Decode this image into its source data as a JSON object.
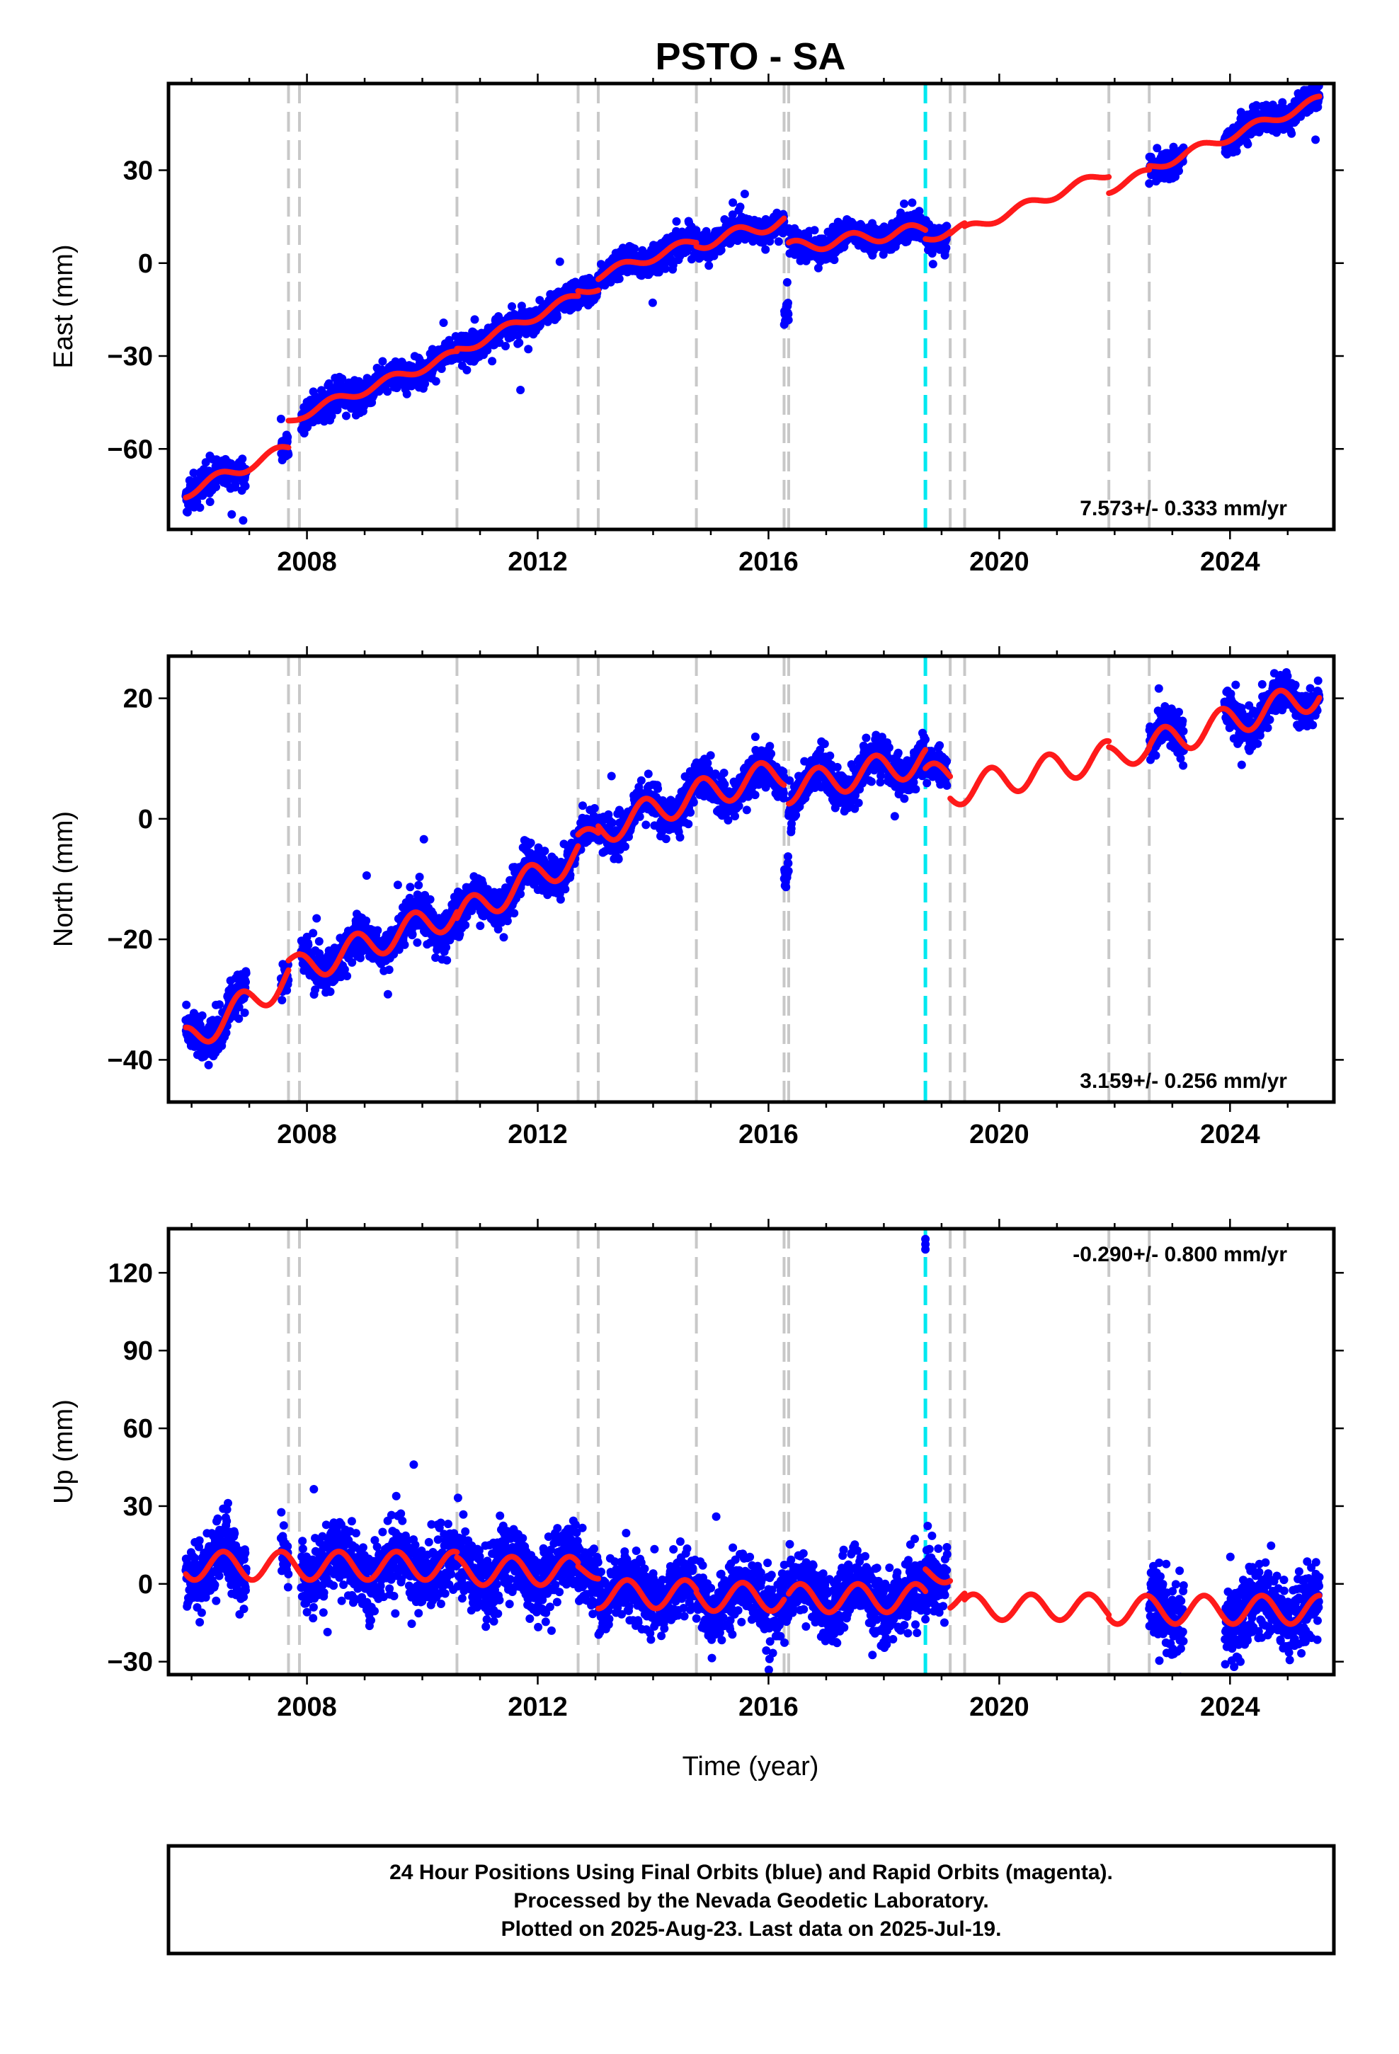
{
  "title": "PSTO - SA",
  "x_axis_label": "Time (year)",
  "x_tick_labels": [
    "2008",
    "2012",
    "2016",
    "2020",
    "2024"
  ],
  "footer": {
    "line1": "24 Hour Positions Using Final Orbits (blue) and Rapid Orbits (magenta).",
    "line2": "Processed by the Nevada Geodetic Laboratory.",
    "line3": "Plotted on 2025-Aug-23. Last data on 2025-Jul-19."
  },
  "colors": {
    "final_orbits": "#0000ff",
    "model": "#ff1a1a",
    "equipment_change": "#c8c8c8",
    "earthquake": "#00e8f0"
  },
  "chart_data": [
    {
      "type": "scatter",
      "panel": "east",
      "ylabel": "East (mm)",
      "xlim": [
        2005.6,
        2025.8
      ],
      "ylim": [
        -86,
        58
      ],
      "yticks": [
        -60,
        -30,
        0,
        30
      ],
      "ytick_labels": [
        "−60",
        "−30",
        "0",
        "30"
      ],
      "rate_label": "7.573+/- 0.333 mm/yr",
      "rate_position": "bottom-right",
      "gray_step_years": [
        2007.68,
        2007.87,
        2010.6,
        2012.7,
        2013.05,
        2014.75,
        2016.27,
        2016.35,
        2019.15,
        2019.4,
        2021.9,
        2022.6
      ],
      "earthquake_year": 2018.72,
      "data_ranges": [
        [
          2005.9,
          2006.6
        ],
        [
          2006.6,
          2006.95
        ],
        [
          2007.55,
          2007.68
        ],
        [
          2007.9,
          2018.72
        ],
        [
          2018.72,
          2019.1
        ],
        [
          2022.6,
          2023.2
        ],
        [
          2023.9,
          2025.55
        ]
      ],
      "model_segments": [
        {
          "x": [
            2005.9,
            2007.68
          ],
          "y0": -74,
          "rate": 8.0,
          "amp": 1.8,
          "phase": 0.2
        },
        {
          "x": [
            2007.68,
            2007.87
          ],
          "y0": -51,
          "rate": 7.0,
          "amp": 1.0,
          "phase": 0.2
        },
        {
          "x": [
            2007.87,
            2010.6
          ],
          "y0": -49,
          "rate": 7.2,
          "amp": 1.5,
          "phase": 0.2
        },
        {
          "x": [
            2010.6,
            2012.7
          ],
          "y0": -28.5,
          "rate": 8.5,
          "amp": 1.5,
          "phase": 0.2
        },
        {
          "x": [
            2012.7,
            2013.05
          ],
          "y0": -9,
          "rate": 3.0,
          "amp": 1.0,
          "phase": 0.2
        },
        {
          "x": [
            2013.05,
            2014.75
          ],
          "y0": -4,
          "rate": 6.5,
          "amp": 1.5,
          "phase": 0.2
        },
        {
          "x": [
            2014.75,
            2016.27
          ],
          "y0": 6,
          "rate": 5.0,
          "amp": 2.0,
          "phase": 0.2
        },
        {
          "x": [
            2016.35,
            2018.72
          ],
          "y0": 5,
          "rate": 2.5,
          "amp": 2.0,
          "phase": 0.2
        },
        {
          "x": [
            2018.72,
            2019.15
          ],
          "y0": 8,
          "rate": 6.0,
          "amp": 1.5,
          "phase": 0.2
        },
        {
          "x": [
            2019.15,
            2019.4
          ],
          "y0": 10,
          "rate": 6.0,
          "amp": 1.5,
          "phase": 0.2
        },
        {
          "x": [
            2019.4,
            2021.9
          ],
          "y0": 10.5,
          "rate": 7.5,
          "amp": 1.5,
          "phase": 0.2
        },
        {
          "x": [
            2021.9,
            2022.6
          ],
          "y0": 24,
          "rate": 7.5,
          "amp": 1.5,
          "phase": 0.2
        },
        {
          "x": [
            2022.6,
            2025.55
          ],
          "y0": 30.5,
          "rate": 7.5,
          "amp": 1.5,
          "phase": 0.2
        }
      ],
      "scatter_noise_mm": 2.2
    },
    {
      "type": "scatter",
      "panel": "north",
      "ylabel": "North (mm)",
      "xlim": [
        2005.6,
        2025.8
      ],
      "ylim": [
        -47,
        27
      ],
      "yticks": [
        -40,
        -20,
        0,
        20
      ],
      "ytick_labels": [
        "−40",
        "−20",
        "0",
        "20"
      ],
      "rate_label": "3.159+/- 0.256 mm/yr",
      "rate_position": "bottom-right",
      "gray_step_years": [
        2007.68,
        2007.87,
        2010.6,
        2012.7,
        2013.05,
        2014.75,
        2016.27,
        2016.35,
        2019.15,
        2019.4,
        2021.9,
        2022.6
      ],
      "earthquake_year": 2018.72,
      "data_ranges": [
        [
          2005.9,
          2006.6
        ],
        [
          2006.6,
          2006.95
        ],
        [
          2007.55,
          2007.68
        ],
        [
          2007.9,
          2018.72
        ],
        [
          2018.72,
          2019.1
        ],
        [
          2022.6,
          2023.2
        ],
        [
          2023.9,
          2025.55
        ]
      ],
      "model_segments": [
        {
          "x": [
            2005.9,
            2007.68
          ],
          "y0": -37,
          "rate": 6.0,
          "amp": 2.5,
          "phase": 0.6
        },
        {
          "x": [
            2007.68,
            2007.87
          ],
          "y0": -24,
          "rate": 3.0,
          "amp": 1.0,
          "phase": 0.6
        },
        {
          "x": [
            2007.87,
            2010.6
          ],
          "y0": -25,
          "rate": 3.5,
          "amp": 2.5,
          "phase": 0.6
        },
        {
          "x": [
            2010.6,
            2012.7
          ],
          "y0": -16.5,
          "rate": 5.0,
          "amp": 2.5,
          "phase": 0.6
        },
        {
          "x": [
            2012.7,
            2013.05
          ],
          "y0": -3.5,
          "rate": 2.0,
          "amp": 1.5,
          "phase": 0.6
        },
        {
          "x": [
            2013.05,
            2014.75
          ],
          "y0": -2,
          "rate": 3.5,
          "amp": 2.5,
          "phase": 0.6
        },
        {
          "x": [
            2014.75,
            2016.27
          ],
          "y0": 4,
          "rate": 2.5,
          "amp": 2.5,
          "phase": 0.6
        },
        {
          "x": [
            2016.35,
            2018.72
          ],
          "y0": 5,
          "rate": 2.0,
          "amp": 2.5,
          "phase": 0.6
        },
        {
          "x": [
            2018.72,
            2019.15
          ],
          "y0": 7,
          "rate": 1.5,
          "amp": 2.0,
          "phase": 0.6
        },
        {
          "x": [
            2019.15,
            2019.4
          ],
          "y0": 4,
          "rate": 2.0,
          "amp": 2.0,
          "phase": 0.6
        },
        {
          "x": [
            2019.4,
            2021.9
          ],
          "y0": 5,
          "rate": 2.2,
          "amp": 2.5,
          "phase": 0.6
        },
        {
          "x": [
            2021.9,
            2022.6
          ],
          "y0": 10,
          "rate": 2.5,
          "amp": 2.0,
          "phase": 0.6
        },
        {
          "x": [
            2022.6,
            2025.55
          ],
          "y0": 12,
          "rate": 3.0,
          "amp": 2.5,
          "phase": 0.6
        }
      ],
      "scatter_noise_mm": 1.6
    },
    {
      "type": "scatter",
      "panel": "up",
      "ylabel": "Up (mm)",
      "xlim": [
        2005.6,
        2025.8
      ],
      "ylim": [
        -35,
        137
      ],
      "yticks": [
        -30,
        0,
        30,
        60,
        90,
        120
      ],
      "ytick_labels": [
        "−30",
        "0",
        "30",
        "60",
        "90",
        "120"
      ],
      "rate_label": "-0.290+/- 0.800 mm/yr",
      "rate_position": "top-right",
      "gray_step_years": [
        2007.68,
        2007.87,
        2010.6,
        2012.7,
        2013.05,
        2014.75,
        2016.27,
        2016.35,
        2019.15,
        2019.4,
        2021.9,
        2022.6
      ],
      "earthquake_year": 2018.72,
      "data_ranges": [
        [
          2005.9,
          2006.6
        ],
        [
          2006.6,
          2006.95
        ],
        [
          2007.55,
          2007.68
        ],
        [
          2007.9,
          2018.72
        ],
        [
          2018.72,
          2019.1
        ],
        [
          2022.6,
          2023.2
        ],
        [
          2023.9,
          2025.55
        ]
      ],
      "model_segments": [
        {
          "x": [
            2005.9,
            2007.68
          ],
          "y0": 7,
          "rate": 0.0,
          "amp": 5.5,
          "phase": 0.3
        },
        {
          "x": [
            2007.68,
            2007.87
          ],
          "y0": 7,
          "rate": 0.0,
          "amp": 5.5,
          "phase": 0.3
        },
        {
          "x": [
            2007.87,
            2010.6
          ],
          "y0": 7,
          "rate": 0.0,
          "amp": 5.5,
          "phase": 0.3
        },
        {
          "x": [
            2010.6,
            2012.7
          ],
          "y0": 5,
          "rate": 0.0,
          "amp": 5.5,
          "phase": 0.3
        },
        {
          "x": [
            2012.7,
            2013.05
          ],
          "y0": 5,
          "rate": 0.0,
          "amp": 3.0,
          "phase": 0.3
        },
        {
          "x": [
            2013.05,
            2014.75
          ],
          "y0": -4,
          "rate": 0.0,
          "amp": 5.5,
          "phase": 0.3
        },
        {
          "x": [
            2014.75,
            2016.27
          ],
          "y0": -5,
          "rate": 0.0,
          "amp": 5.5,
          "phase": 0.3
        },
        {
          "x": [
            2016.35,
            2018.72
          ],
          "y0": -5.5,
          "rate": 0.0,
          "amp": 5.5,
          "phase": 0.3
        },
        {
          "x": [
            2018.72,
            2019.15
          ],
          "y0": 4,
          "rate": 0.0,
          "amp": 3.5,
          "phase": 0.3
        },
        {
          "x": [
            2019.15,
            2019.4
          ],
          "y0": -6,
          "rate": 0.0,
          "amp": 4.0,
          "phase": 0.3
        },
        {
          "x": [
            2019.4,
            2021.9
          ],
          "y0": -9,
          "rate": 0.0,
          "amp": 5.0,
          "phase": 0.3
        },
        {
          "x": [
            2021.9,
            2022.6
          ],
          "y0": -10,
          "rate": 0.0,
          "amp": 5.5,
          "phase": 0.3
        },
        {
          "x": [
            2022.6,
            2025.55
          ],
          "y0": -10,
          "rate": 0.0,
          "amp": 5.5,
          "phase": 0.3
        }
      ],
      "scatter_noise_mm": 6.5,
      "outliers": [
        {
          "x": 2018.72,
          "y": 133
        },
        {
          "x": 2018.72,
          "y": 129
        },
        {
          "x": 2018.72,
          "y": 131
        }
      ]
    }
  ]
}
